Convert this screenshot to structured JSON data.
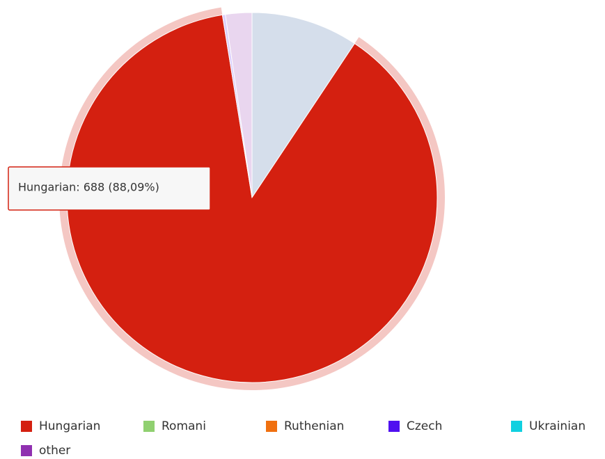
{
  "chart_data": {
    "type": "pie",
    "slices": [
      {
        "name": null,
        "value": 73,
        "color": "#2f5b9b"
      },
      {
        "name": "Hungarian",
        "value": 688,
        "color": "#d42010"
      },
      {
        "name": "Romani",
        "value": 0,
        "color": "#90d070"
      },
      {
        "name": "Ruthenian",
        "value": 0,
        "color": "#f07010"
      },
      {
        "name": "Czech",
        "value": 2,
        "color": "#5010f0"
      },
      {
        "name": "Ukrainian",
        "value": 0,
        "color": "#10d0e0"
      },
      {
        "name": "other",
        "value": 18,
        "color": "#9030b0"
      }
    ],
    "highlighted": 1,
    "tooltip": "Hungarian: 688 (88,09%)"
  }
}
